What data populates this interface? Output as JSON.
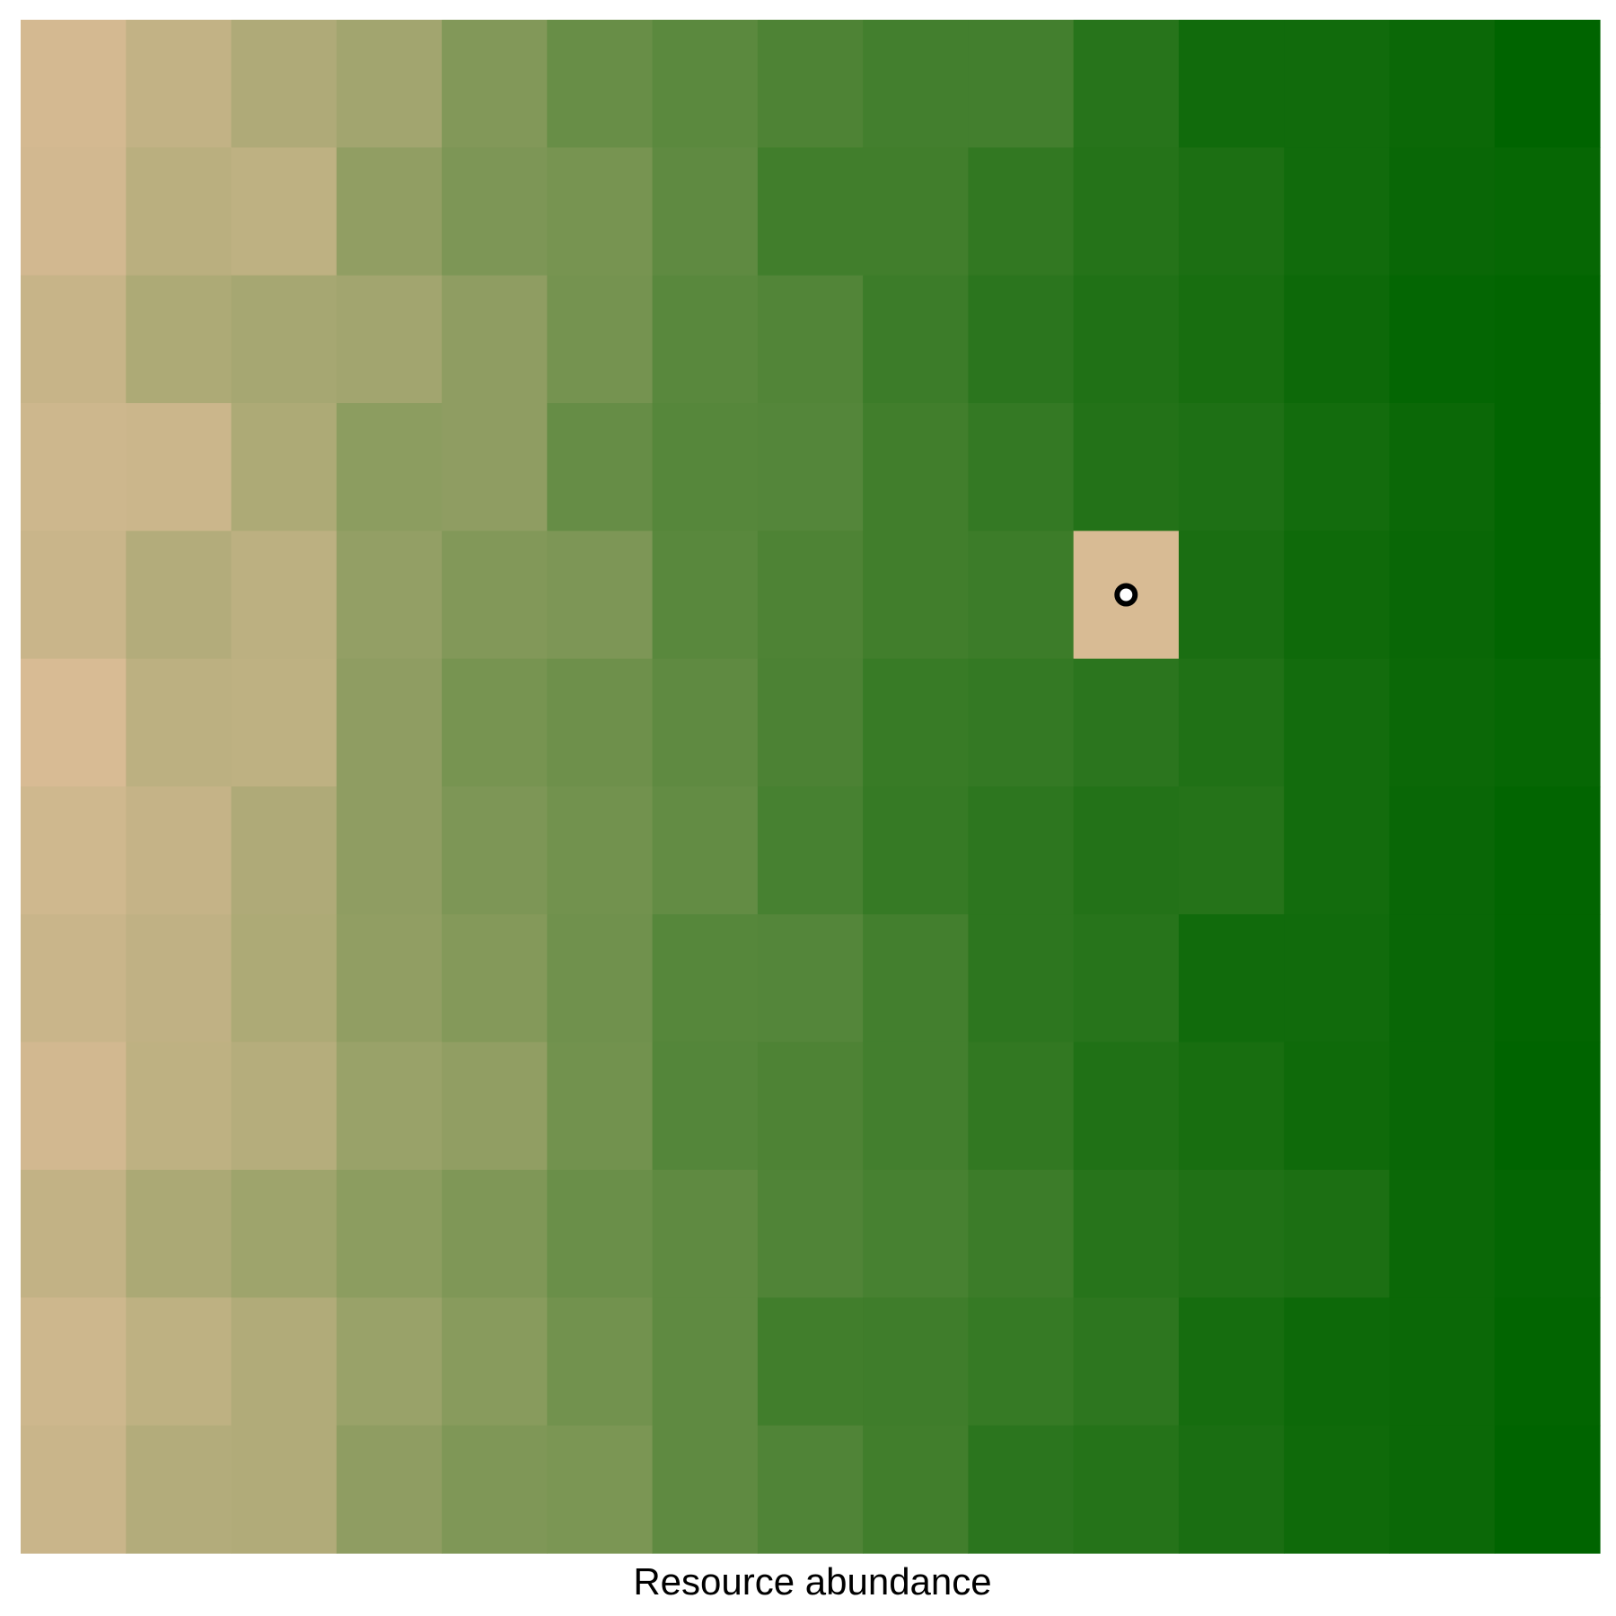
{
  "chart_data": {
    "type": "heatmap",
    "title": "",
    "xlabel": "Resource abundance",
    "ylabel": "",
    "rows": 12,
    "cols": 15,
    "colorscale": {
      "low": "#d8bb94",
      "high": "#006400",
      "direction": "low resource abundance on the left, high on the right"
    },
    "values": [
      [
        0.02,
        0.1,
        0.19,
        0.25,
        0.4,
        0.52,
        0.58,
        0.64,
        0.69,
        0.69,
        0.82,
        0.92,
        0.92,
        0.95,
        1.0
      ],
      [
        0.03,
        0.14,
        0.12,
        0.33,
        0.42,
        0.45,
        0.56,
        0.7,
        0.7,
        0.77,
        0.83,
        0.87,
        0.92,
        0.96,
        0.97
      ],
      [
        0.08,
        0.2,
        0.23,
        0.25,
        0.34,
        0.46,
        0.59,
        0.62,
        0.72,
        0.8,
        0.85,
        0.89,
        0.94,
        0.98,
        0.99
      ],
      [
        0.05,
        0.06,
        0.2,
        0.35,
        0.34,
        0.53,
        0.6,
        0.61,
        0.7,
        0.76,
        0.84,
        0.86,
        0.91,
        0.95,
        0.99
      ],
      [
        0.07,
        0.17,
        0.13,
        0.32,
        0.4,
        0.42,
        0.59,
        0.64,
        0.7,
        0.72,
        0.0,
        0.88,
        0.93,
        0.96,
        0.99
      ],
      [
        0.0,
        0.13,
        0.12,
        0.34,
        0.45,
        0.49,
        0.56,
        0.65,
        0.74,
        0.76,
        0.8,
        0.85,
        0.91,
        0.95,
        0.97
      ],
      [
        0.04,
        0.09,
        0.19,
        0.34,
        0.42,
        0.47,
        0.54,
        0.67,
        0.75,
        0.79,
        0.84,
        0.83,
        0.91,
        0.96,
        0.99
      ],
      [
        0.07,
        0.11,
        0.2,
        0.33,
        0.39,
        0.48,
        0.6,
        0.61,
        0.69,
        0.79,
        0.82,
        0.92,
        0.92,
        0.96,
        0.99
      ],
      [
        0.03,
        0.12,
        0.16,
        0.29,
        0.33,
        0.47,
        0.61,
        0.64,
        0.69,
        0.77,
        0.85,
        0.89,
        0.93,
        0.96,
        1.0
      ],
      [
        0.1,
        0.21,
        0.27,
        0.35,
        0.41,
        0.51,
        0.56,
        0.63,
        0.67,
        0.72,
        0.82,
        0.85,
        0.87,
        0.95,
        0.98
      ],
      [
        0.05,
        0.12,
        0.18,
        0.29,
        0.37,
        0.47,
        0.56,
        0.7,
        0.71,
        0.75,
        0.79,
        0.9,
        0.94,
        0.95,
        0.99
      ],
      [
        0.07,
        0.17,
        0.18,
        0.34,
        0.41,
        0.43,
        0.56,
        0.63,
        0.7,
        0.8,
        0.83,
        0.88,
        0.93,
        0.95,
        1.0
      ]
    ],
    "marker": {
      "row": 4,
      "col": 10,
      "shape": "circle"
    },
    "grid": false,
    "legend": "none"
  }
}
